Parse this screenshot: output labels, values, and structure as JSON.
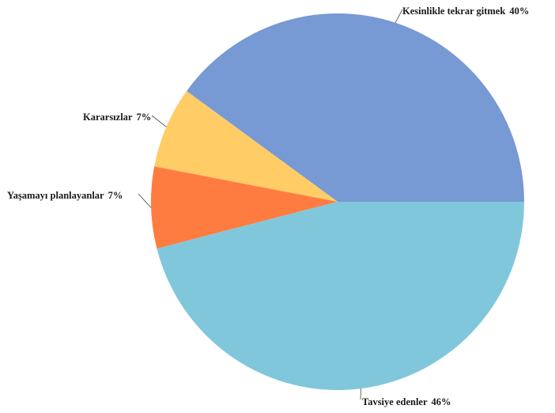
{
  "chart_data": {
    "type": "pie",
    "title": "",
    "slices": [
      {
        "label": "Kesinlikle tekrar gitmek",
        "value": 40,
        "value_label": "40%",
        "color": "#7799d4"
      },
      {
        "label": "Kararsızlar",
        "value": 7,
        "value_label": "7%",
        "color": "#ffcc66"
      },
      {
        "label": "Yaşamayı planlayanlar",
        "value": 7,
        "value_label": "7%",
        "color": "#ff7c40"
      },
      {
        "label": "Tavsiye edenler",
        "value": 46,
        "value_label": "46%",
        "color": "#80c7dc"
      }
    ],
    "start_direction": "east",
    "direction": "counterclockwise",
    "legend": "none"
  }
}
